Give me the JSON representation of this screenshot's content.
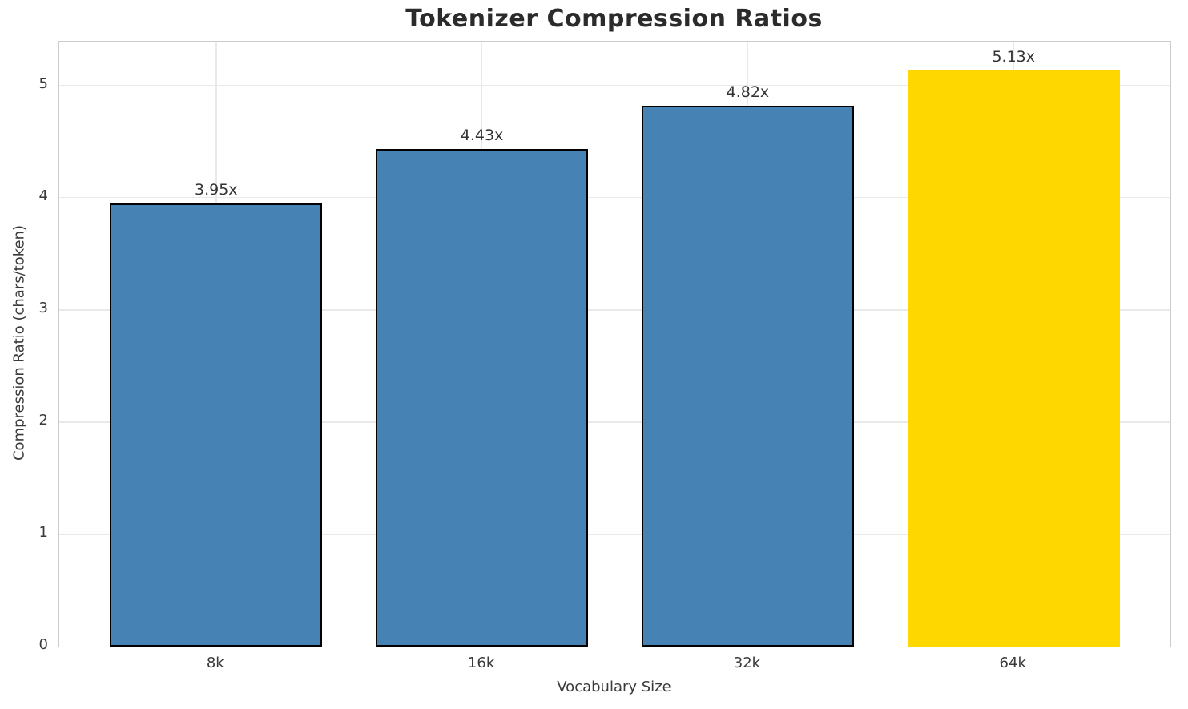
{
  "chart_data": {
    "type": "bar",
    "title": "Tokenizer Compression Ratios",
    "xlabel": "Vocabulary Size",
    "ylabel": "Compression Ratio (chars/token)",
    "categories": [
      "8k",
      "16k",
      "32k",
      "64k"
    ],
    "values": [
      3.95,
      4.43,
      4.82,
      5.13
    ],
    "bar_labels": [
      "3.95x",
      "4.43x",
      "4.82x",
      "5.13x"
    ],
    "yticks": [
      "0",
      "1",
      "2",
      "3",
      "4",
      "5"
    ],
    "ylim": [
      0,
      5.39
    ],
    "xlim": [
      -0.59,
      3.59
    ],
    "bar_width": 0.8,
    "grid": true,
    "legend": "none",
    "highlight_index": 3,
    "bar_edge_visible": [
      true,
      true,
      true,
      false
    ],
    "colors": {
      "bar_default": "#4682B4",
      "bar_highlight": "#FFD700",
      "bar_edge": "#000000",
      "grid_line": "#E9E9E9",
      "spine": "#CCCCCC",
      "title_text": "#2B2B2B",
      "axis_text": "#3A3A3A",
      "value_label_text": "#333333"
    }
  }
}
